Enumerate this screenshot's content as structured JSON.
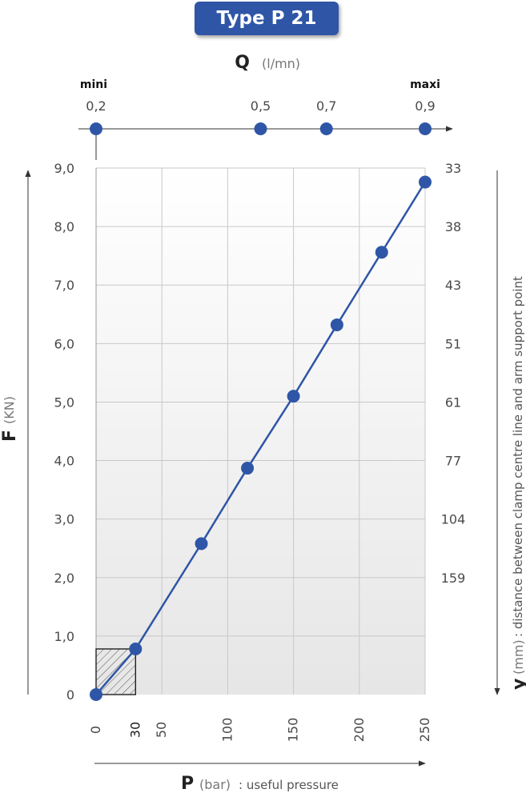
{
  "title": "Type P 21",
  "colors": {
    "accent": "#2f56a6",
    "grid": "#c8c8c8",
    "plot_bg_top": "#ffffff",
    "plot_bg_bottom": "#e6e6e6"
  },
  "chart_data": {
    "type": "line",
    "x_axis": {
      "letter": "P",
      "unit": "(bar)",
      "description": ": useful pressure",
      "range": [
        0,
        250
      ],
      "ticks": [
        "0",
        "30",
        "50",
        "100",
        "150",
        "200",
        "250"
      ]
    },
    "y_axis": {
      "letter": "F",
      "unit": "(KN)",
      "range": [
        0,
        9
      ],
      "ticks": [
        "0",
        "1,0",
        "2,0",
        "3,0",
        "4,0",
        "5,0",
        "6,0",
        "7,0",
        "8,0",
        "9,0"
      ]
    },
    "y2_axis": {
      "letter": "y",
      "unit": "(mm)",
      "description": ": distance between clamp centre line and arm support point",
      "ticks": [
        {
          "label": "33",
          "at_f": 9
        },
        {
          "label": "38",
          "at_f": 8
        },
        {
          "label": "43",
          "at_f": 7
        },
        {
          "label": "51",
          "at_f": 6
        },
        {
          "label": "61",
          "at_f": 5
        },
        {
          "label": "77",
          "at_f": 4
        },
        {
          "label": "104",
          "at_f": 3
        },
        {
          "label": "159",
          "at_f": 2
        }
      ]
    },
    "top_axis": {
      "letter": "Q",
      "unit": "(l/mn)",
      "min_label": "mini",
      "max_label": "maxi",
      "points": [
        {
          "label": "0,2",
          "at_p": 0
        },
        {
          "label": "0,5",
          "at_p": 125
        },
        {
          "label": "0,7",
          "at_p": 175
        },
        {
          "label": "0,9",
          "at_p": 250
        }
      ]
    },
    "series": [
      {
        "x": [
          0,
          30,
          80,
          115,
          150,
          183,
          217,
          250
        ],
        "y": [
          0,
          0.78,
          2.58,
          3.87,
          5.1,
          6.32,
          7.56,
          8.76
        ]
      }
    ],
    "hatched_region": {
      "x": [
        0,
        30
      ],
      "y": [
        0,
        0.78
      ]
    },
    "grid": true
  }
}
